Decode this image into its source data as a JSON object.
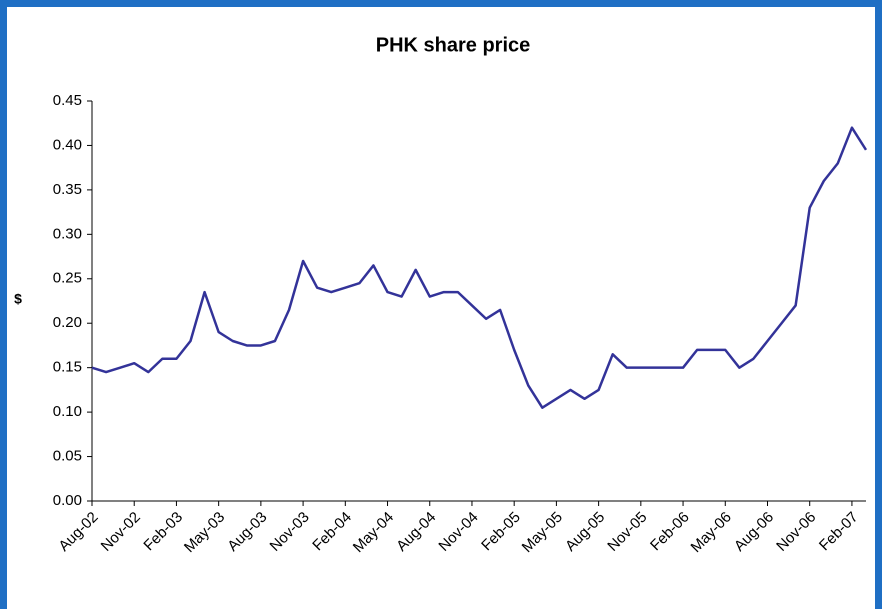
{
  "chart_data": {
    "type": "line",
    "title": "PHK share price",
    "y_label": "$",
    "categories": [
      "Aug-02",
      null,
      null,
      "Nov-02",
      null,
      null,
      "Feb-03",
      null,
      null,
      "May-03",
      null,
      null,
      "Aug-03",
      null,
      null,
      "Nov-03",
      null,
      null,
      "Feb-04",
      null,
      null,
      "May-04",
      null,
      null,
      "Aug-04",
      null,
      null,
      "Nov-04",
      null,
      null,
      "Feb-05",
      null,
      null,
      "May-05",
      null,
      null,
      "Aug-05",
      null,
      null,
      "Nov-05",
      null,
      null,
      "Feb-06",
      null,
      null,
      "May-06",
      null,
      null,
      "Aug-06",
      null,
      null,
      "Nov-06",
      null,
      null,
      "Feb-07",
      null
    ],
    "series": [
      {
        "name": "PHK",
        "color": "#333399",
        "values": [
          0.15,
          0.145,
          0.15,
          0.155,
          0.145,
          0.16,
          0.16,
          0.18,
          0.235,
          0.19,
          0.18,
          0.175,
          0.175,
          0.18,
          0.215,
          0.27,
          0.24,
          0.235,
          0.24,
          0.245,
          0.265,
          0.235,
          0.23,
          0.26,
          0.23,
          0.235,
          0.235,
          0.22,
          0.205,
          0.215,
          0.17,
          0.13,
          0.105,
          0.115,
          0.125,
          0.115,
          0.125,
          0.165,
          0.15,
          0.15,
          0.15,
          0.15,
          0.15,
          0.17,
          0.17,
          0.17,
          0.15,
          0.16,
          0.18,
          0.2,
          0.22,
          0.33,
          0.36,
          0.38,
          0.42,
          0.395
        ]
      }
    ],
    "ylim": [
      0,
      0.45
    ],
    "yticks": [
      {
        "value": 0,
        "label": "0.00"
      },
      0.05,
      {
        "value": 0.1,
        "label": "0.10"
      },
      0.15,
      {
        "value": 0.2,
        "label": "0.20"
      },
      0.25,
      {
        "value": 0.3,
        "label": "0.30"
      },
      0.35,
      {
        "value": 0.4,
        "label": "0.40"
      },
      0.45
    ],
    "grid": false
  }
}
